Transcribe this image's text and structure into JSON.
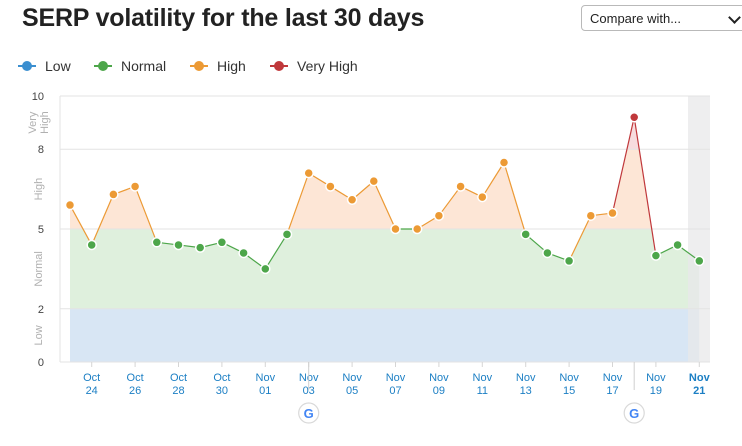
{
  "header": {
    "title": "SERP volatility for the last 30 days",
    "compare_label": "Compare with..."
  },
  "legend": [
    {
      "label": "Low",
      "color": "#3b8fd0"
    },
    {
      "label": "Normal",
      "color": "#4da64a"
    },
    {
      "label": "High",
      "color": "#ec9a35"
    },
    {
      "label": "Very High",
      "color": "#c0383b"
    }
  ],
  "chart_data": {
    "type": "line",
    "ylim": [
      0,
      10
    ],
    "yticks": [
      0,
      2,
      5,
      8,
      10
    ],
    "zones": [
      {
        "name": "Low",
        "from": 0,
        "to": 2,
        "color": "#d8e6f4",
        "label_text": "Low"
      },
      {
        "name": "Normal",
        "from": 2,
        "to": 5,
        "color": "#dff0dd",
        "label_text": "Normal"
      },
      {
        "name": "High",
        "from": 5,
        "to": 8,
        "color": "#fde6d6",
        "label_text": "High"
      },
      {
        "name": "Very High",
        "from": 8,
        "to": 10,
        "color": "#f7dcde",
        "label_text": "Very High"
      }
    ],
    "x_labels": [
      {
        "day": 1,
        "month": "Oct",
        "date": "24"
      },
      {
        "day": 3,
        "month": "Oct",
        "date": "26"
      },
      {
        "day": 5,
        "month": "Oct",
        "date": "28"
      },
      {
        "day": 7,
        "month": "Oct",
        "date": "30"
      },
      {
        "day": 9,
        "month": "Nov",
        "date": "01"
      },
      {
        "day": 11,
        "month": "Nov",
        "date": "03"
      },
      {
        "day": 13,
        "month": "Nov",
        "date": "05"
      },
      {
        "day": 15,
        "month": "Nov",
        "date": "07"
      },
      {
        "day": 17,
        "month": "Nov",
        "date": "09"
      },
      {
        "day": 19,
        "month": "Nov",
        "date": "11"
      },
      {
        "day": 21,
        "month": "Nov",
        "date": "13"
      },
      {
        "day": 23,
        "month": "Nov",
        "date": "15"
      },
      {
        "day": 25,
        "month": "Nov",
        "date": "17"
      },
      {
        "day": 27,
        "month": "Nov",
        "date": "19"
      },
      {
        "day": 29,
        "month": "Nov",
        "date": "21",
        "bold": true
      }
    ],
    "series": [
      {
        "values": [
          5.9,
          4.4,
          6.3,
          6.6,
          4.5,
          4.4,
          4.3,
          4.5,
          4.1,
          3.5,
          4.8,
          7.1,
          6.6,
          6.1,
          6.8,
          5.0,
          5.0,
          5.5,
          6.6,
          6.2,
          7.5,
          4.8,
          4.1,
          3.8,
          5.5,
          5.6,
          9.2,
          4.0,
          4.4,
          3.8
        ],
        "levels": [
          "High",
          "Normal",
          "High",
          "High",
          "Normal",
          "Normal",
          "Normal",
          "Normal",
          "Normal",
          "Normal",
          "Normal",
          "High",
          "High",
          "High",
          "High",
          "High",
          "High",
          "High",
          "High",
          "High",
          "High",
          "Normal",
          "Normal",
          "Normal",
          "High",
          "High",
          "Very High",
          "Normal",
          "Normal",
          "Normal"
        ]
      }
    ],
    "google_updates": [
      11,
      26
    ]
  }
}
